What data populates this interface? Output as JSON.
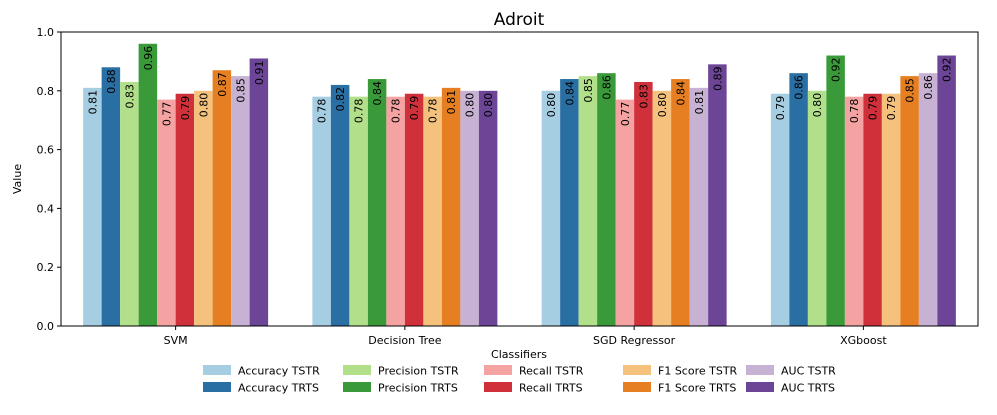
{
  "chart_data": {
    "type": "bar",
    "title": "Adroit",
    "xlabel": "Classifiers",
    "ylabel": "Value",
    "ylim": [
      0,
      1.0
    ],
    "yticks": [
      "0.0",
      "0.2",
      "0.4",
      "0.6",
      "0.8",
      "1.0"
    ],
    "categories": [
      "SVM",
      "Decision Tree",
      "SGD Regressor",
      "XGboost"
    ],
    "legend_position": "bottom-center",
    "series": [
      {
        "name": "Accuracy TSTR",
        "color": "#a6cee3",
        "values": [
          0.81,
          0.78,
          0.8,
          0.79
        ],
        "labels": [
          "0.81",
          "0.78",
          "0.80",
          "0.79"
        ]
      },
      {
        "name": "Accuracy TRTS",
        "color": "#2a6fa3",
        "values": [
          0.88,
          0.82,
          0.84,
          0.86
        ],
        "labels": [
          "0.88",
          "0.82",
          "0.84",
          "0.86"
        ]
      },
      {
        "name": "Precision TSTR",
        "color": "#b2df8a",
        "values": [
          0.83,
          0.78,
          0.85,
          0.8
        ],
        "labels": [
          "0.83",
          "0.78",
          "0.85",
          "0.80"
        ]
      },
      {
        "name": "Precision TRTS",
        "color": "#3a9a3a",
        "values": [
          0.96,
          0.84,
          0.86,
          0.92
        ],
        "labels": [
          "0.96",
          "0.84",
          "0.86",
          "0.92"
        ]
      },
      {
        "name": "Recall TSTR",
        "color": "#f4a3a2",
        "values": [
          0.77,
          0.78,
          0.77,
          0.78
        ],
        "labels": [
          "0.77",
          "0.78",
          "0.77",
          "0.78"
        ]
      },
      {
        "name": "Recall TRTS",
        "color": "#d0303a",
        "values": [
          0.79,
          0.79,
          0.83,
          0.79
        ],
        "labels": [
          "0.79",
          "0.79",
          "0.83",
          "0.79"
        ]
      },
      {
        "name": "F1 Score TSTR",
        "color": "#f5c27e",
        "values": [
          0.8,
          0.78,
          0.8,
          0.79
        ],
        "labels": [
          "0.80",
          "0.78",
          "0.80",
          "0.79"
        ]
      },
      {
        "name": "F1 Score TRTS",
        "color": "#e57f22",
        "values": [
          0.87,
          0.81,
          0.84,
          0.85
        ],
        "labels": [
          "0.87",
          "0.81",
          "0.84",
          "0.85"
        ]
      },
      {
        "name": "AUC TSTR",
        "color": "#c8b2d4",
        "values": [
          0.85,
          0.8,
          0.81,
          0.86
        ],
        "labels": [
          "0.85",
          "0.80",
          "0.81",
          "0.86"
        ]
      },
      {
        "name": "AUC TRTS",
        "color": "#6d4597",
        "values": [
          0.91,
          0.8,
          0.89,
          0.92
        ],
        "labels": [
          "0.91",
          "0.80",
          "0.89",
          "0.92"
        ]
      }
    ]
  }
}
